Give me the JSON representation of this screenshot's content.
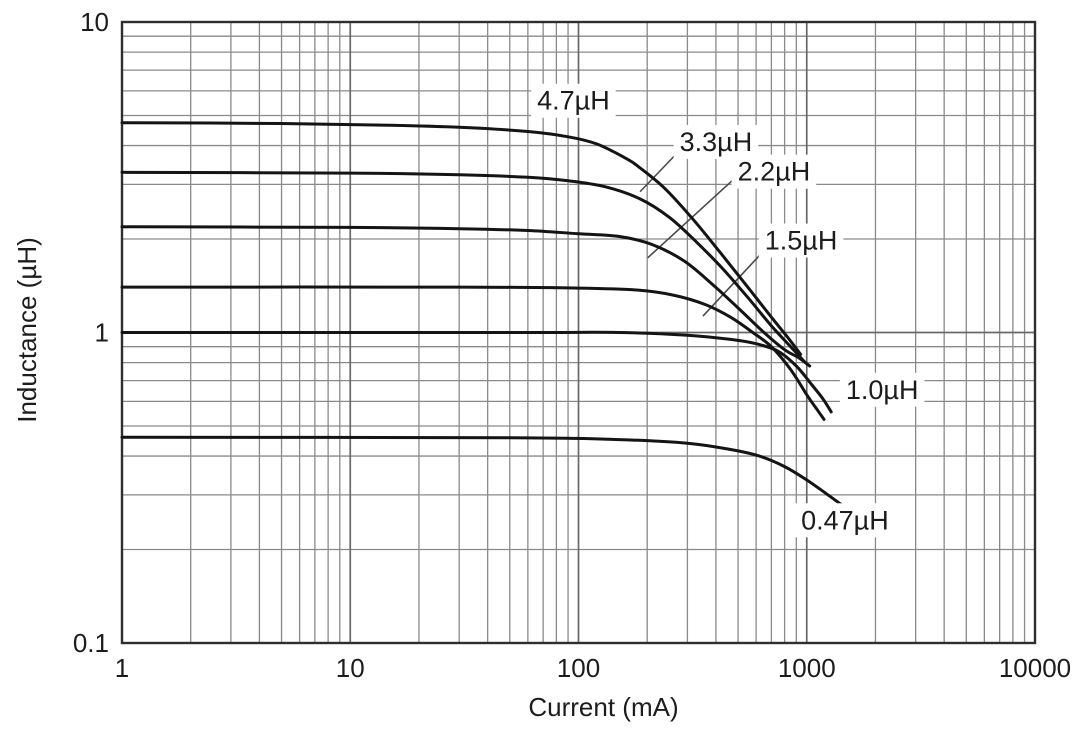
{
  "figure": {
    "background": "#ffffff",
    "frame_color": "#2e2e2e",
    "grid_minor_color": "#8a8a8a",
    "grid_major_color": "#686868",
    "curve_color": "#141414",
    "leader_color": "#4a4a4a",
    "text_color": "#1c1c1c"
  },
  "chart_data": {
    "type": "line",
    "title": "",
    "xlabel": "Current (mA)",
    "ylabel": "Inductance (µH)",
    "x_scale": "log",
    "y_scale": "log",
    "xlim": [
      1,
      10000
    ],
    "ylim": [
      0.1,
      10
    ],
    "grid": "log minor + major gridlines on both axes",
    "legend_position": "inline curve labels",
    "x_tick_labels": [
      {
        "value": 1,
        "label": "1"
      },
      {
        "value": 10,
        "label": "10"
      },
      {
        "value": 100,
        "label": "100"
      },
      {
        "value": 1000,
        "label": "1000"
      },
      {
        "value": 10000,
        "label": "10000"
      }
    ],
    "y_tick_labels": [
      {
        "value": 0.1,
        "label": "0.1"
      },
      {
        "value": 1,
        "label": "1"
      },
      {
        "value": 10,
        "label": "10"
      }
    ],
    "series": [
      {
        "name": "4.7µH",
        "label": {
          "text": "4.7µH",
          "x": 95,
          "y": 5.5
        },
        "leader": null,
        "points": [
          [
            1,
            4.74
          ],
          [
            5,
            4.71
          ],
          [
            15,
            4.65
          ],
          [
            30,
            4.58
          ],
          [
            60,
            4.44
          ],
          [
            90,
            4.27
          ],
          [
            120,
            4.05
          ],
          [
            160,
            3.65
          ],
          [
            185,
            3.4
          ],
          [
            240,
            2.9
          ],
          [
            320,
            2.3
          ],
          [
            420,
            1.8
          ],
          [
            560,
            1.38
          ],
          [
            700,
            1.12
          ],
          [
            820,
            0.97
          ],
          [
            940,
            0.85
          ]
        ]
      },
      {
        "name": "3.3µH",
        "label": {
          "text": "3.3µH",
          "x": 400,
          "y": 4.05
        },
        "leader": [
          273,
          3.81,
          186,
          2.84
        ],
        "points": [
          [
            1,
            3.28
          ],
          [
            10,
            3.26
          ],
          [
            30,
            3.22
          ],
          [
            60,
            3.16
          ],
          [
            90,
            3.08
          ],
          [
            130,
            2.95
          ],
          [
            185,
            2.7
          ],
          [
            250,
            2.35
          ],
          [
            330,
            1.95
          ],
          [
            430,
            1.6
          ],
          [
            560,
            1.28
          ],
          [
            700,
            1.05
          ],
          [
            850,
            0.9
          ],
          [
            985,
            0.8
          ]
        ]
      },
      {
        "name": "2.2µH",
        "label": {
          "text": "2.2µH",
          "x": 718,
          "y": 3.25
        },
        "leader": [
          475,
          3.1,
          201,
          1.74
        ],
        "points": [
          [
            1,
            2.19
          ],
          [
            10,
            2.18
          ],
          [
            30,
            2.16
          ],
          [
            60,
            2.13
          ],
          [
            100,
            2.08
          ],
          [
            150,
            2.04
          ],
          [
            210,
            1.92
          ],
          [
            290,
            1.7
          ],
          [
            390,
            1.42
          ],
          [
            500,
            1.2
          ],
          [
            650,
            1.0
          ],
          [
            800,
            0.88
          ],
          [
            920,
            0.83
          ],
          [
            1030,
            0.78
          ]
        ]
      },
      {
        "name": "1.5µH",
        "label": {
          "text": "1.5µH",
          "x": 944,
          "y": 1.95
        },
        "leader": [
          643,
          1.82,
          351,
          1.13
        ],
        "points": [
          [
            1,
            1.4
          ],
          [
            30,
            1.4
          ],
          [
            100,
            1.39
          ],
          [
            180,
            1.37
          ],
          [
            260,
            1.32
          ],
          [
            360,
            1.23
          ],
          [
            464,
            1.12
          ],
          [
            580,
            1.0
          ],
          [
            700,
            0.9
          ],
          [
            850,
            0.76
          ],
          [
            1000,
            0.63
          ],
          [
            1100,
            0.57
          ],
          [
            1190,
            0.525
          ]
        ]
      },
      {
        "name": "1.0µH",
        "label": {
          "text": "1.0µH",
          "x": 2140,
          "y": 0.645
        },
        "leader": null,
        "points": [
          [
            1,
            1.0
          ],
          [
            50,
            1.0
          ],
          [
            150,
            1.0
          ],
          [
            300,
            0.98
          ],
          [
            464,
            0.95
          ],
          [
            600,
            0.92
          ],
          [
            750,
            0.87
          ],
          [
            900,
            0.78
          ],
          [
            1050,
            0.68
          ],
          [
            1180,
            0.61
          ],
          [
            1280,
            0.555
          ]
        ]
      },
      {
        "name": "0.47µH",
        "label": {
          "text": "0.47µH",
          "x": 1470,
          "y": 0.245
        },
        "leader": null,
        "points": [
          [
            1,
            0.46
          ],
          [
            50,
            0.458
          ],
          [
            150,
            0.452
          ],
          [
            300,
            0.44
          ],
          [
            464,
            0.42
          ],
          [
            620,
            0.4
          ],
          [
            800,
            0.37
          ],
          [
            1000,
            0.335
          ],
          [
            1200,
            0.305
          ],
          [
            1410,
            0.28
          ]
        ]
      }
    ]
  }
}
